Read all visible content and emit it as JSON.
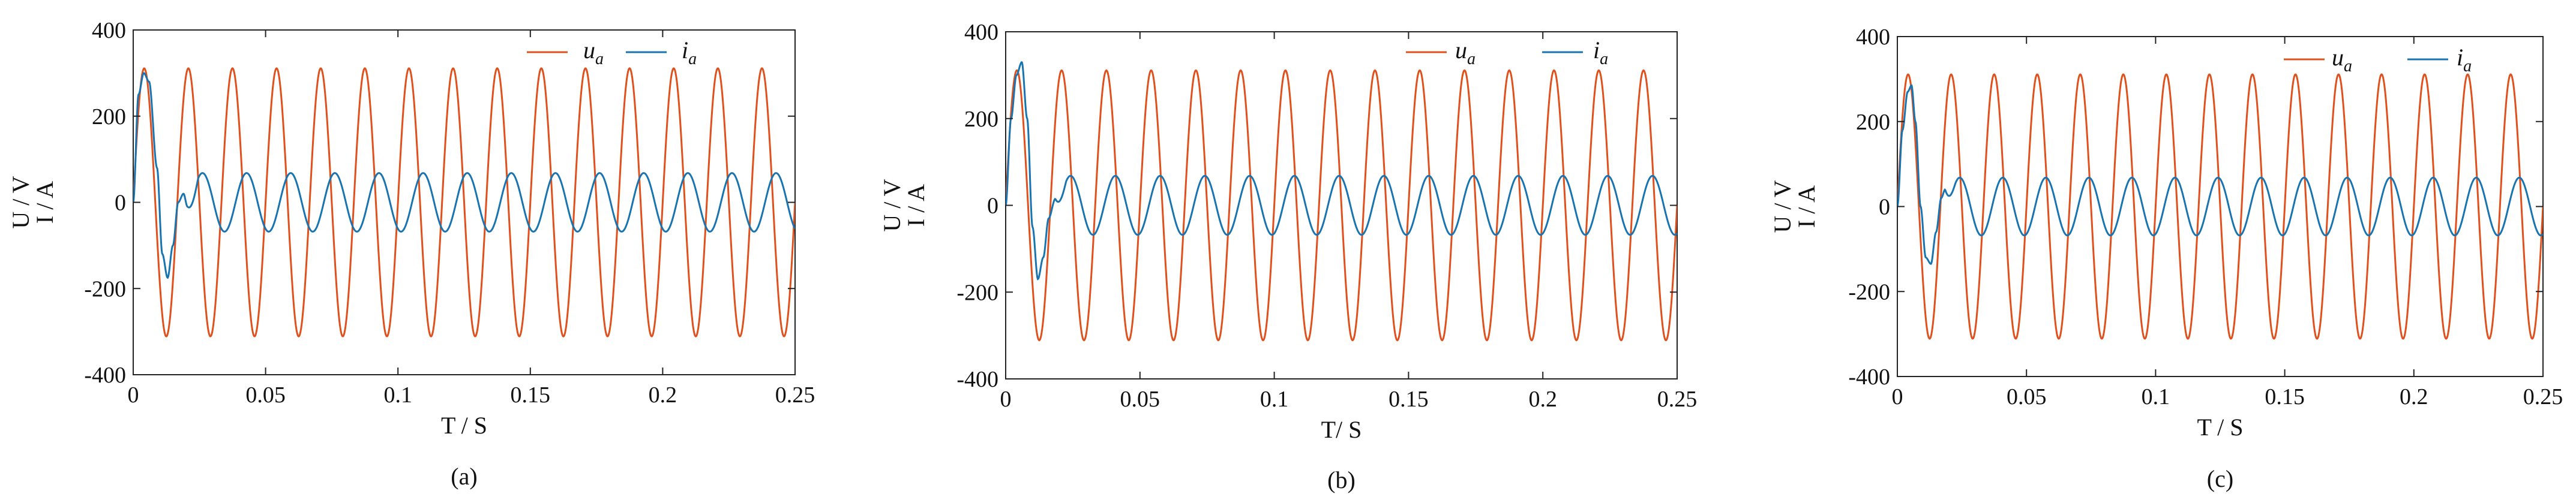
{
  "colors": {
    "voltage": "#e0501d",
    "current": "#1874b0",
    "axis": "#222222"
  },
  "chart_data": [
    {
      "type": "line",
      "caption": "(a)",
      "xlabel": "T / S",
      "ylabel_lines": [
        "U / V",
        "I / A"
      ],
      "xlim": [
        0,
        0.25
      ],
      "ylim": [
        -400,
        400
      ],
      "xticks": [
        0,
        0.05,
        0.1,
        0.15,
        0.2,
        0.25
      ],
      "xtick_labels": [
        "0",
        "0.05",
        "0.1",
        "0.15",
        "0.2",
        "0.25"
      ],
      "yticks": [
        400,
        200,
        0,
        -200,
        -400
      ],
      "ytick_labels": [
        "400",
        "200",
        "0",
        "-200",
        "-400"
      ],
      "legend": {
        "position": "top-right",
        "items": [
          {
            "main": "u",
            "sub": "a"
          },
          {
            "main": "i",
            "sub": "a"
          }
        ]
      },
      "series": [
        {
          "key": "u_a",
          "color": "voltage",
          "amplitude": 311,
          "frequency": 60
        },
        {
          "key": "i_a",
          "color": "current",
          "transient": {
            "x": [
              0,
              0.002,
              0.004,
              0.006,
              0.009,
              0.011,
              0.013,
              0.015,
              0.017,
              0.019,
              0.0205
            ],
            "y": [
              0,
              250,
              300,
              280,
              80,
              -120,
              -175,
              -100,
              0,
              20,
              -10
            ]
          },
          "steady": {
            "start": 0.0205,
            "amplitude": 68,
            "frequency": 60,
            "phase": 0.022
          }
        }
      ]
    },
    {
      "type": "line",
      "caption": "(b)",
      "xlabel": "T/ S",
      "ylabel_lines": [
        "U / V",
        "I / A"
      ],
      "xlim": [
        0,
        0.25
      ],
      "ylim": [
        -400,
        400
      ],
      "xticks": [
        0,
        0.05,
        0.1,
        0.15,
        0.2,
        0.25
      ],
      "xtick_labels": [
        "0",
        "0.05",
        "0.1",
        "0.15",
        "0.2",
        "0.25"
      ],
      "yticks": [
        400,
        200,
        0,
        -200,
        -400
      ],
      "ytick_labels": [
        "400",
        "200",
        "0",
        "-200",
        "-400"
      ],
      "legend": {
        "position": "top-right",
        "items": [
          {
            "main": "u",
            "sub": "a"
          },
          {
            "main": "i",
            "sub": "a"
          }
        ]
      },
      "series": [
        {
          "key": "u_a",
          "color": "voltage",
          "amplitude": 311,
          "frequency": 60
        },
        {
          "key": "i_a",
          "color": "current",
          "transient": {
            "x": [
              0,
              0.002,
              0.004,
              0.006,
              0.008,
              0.01,
              0.012,
              0.014,
              0.016,
              0.0185
            ],
            "y": [
              0,
              200,
              300,
              330,
              200,
              -50,
              -170,
              -120,
              -30,
              15
            ]
          },
          "steady": {
            "start": 0.0185,
            "amplitude": 68,
            "frequency": 60,
            "phase": 0.02
          }
        }
      ]
    },
    {
      "type": "line",
      "caption": "(c)",
      "xlabel": "T / S",
      "ylabel_lines": [
        "U / V",
        "I / A"
      ],
      "xlim": [
        0,
        0.25
      ],
      "ylim": [
        -400,
        400
      ],
      "xticks": [
        0,
        0.05,
        0.1,
        0.15,
        0.2,
        0.25
      ],
      "xtick_labels": [
        "0",
        "0.05",
        "0.1",
        "0.15",
        "0.2",
        "0.25"
      ],
      "yticks": [
        400,
        200,
        0,
        -200,
        -400
      ],
      "ytick_labels": [
        "400",
        "200",
        "0",
        "-200",
        "-400"
      ],
      "legend": {
        "position": "top-right",
        "items": [
          {
            "main": "u",
            "sub": "a"
          },
          {
            "main": "i",
            "sub": "a"
          }
        ]
      },
      "series": [
        {
          "key": "u_a",
          "color": "voltage",
          "amplitude": 311,
          "frequency": 60
        },
        {
          "key": "i_a",
          "color": "current",
          "transient": {
            "x": [
              0,
              0.002,
              0.004,
              0.0055,
              0.007,
              0.009,
              0.011,
              0.013,
              0.015,
              0.017,
              0.0185
            ],
            "y": [
              0,
              180,
              270,
              285,
              200,
              0,
              -120,
              -135,
              -60,
              20,
              40
            ]
          },
          "steady": {
            "start": 0.0185,
            "amplitude": 68,
            "frequency": 60,
            "phase": 0.02
          }
        }
      ]
    }
  ]
}
